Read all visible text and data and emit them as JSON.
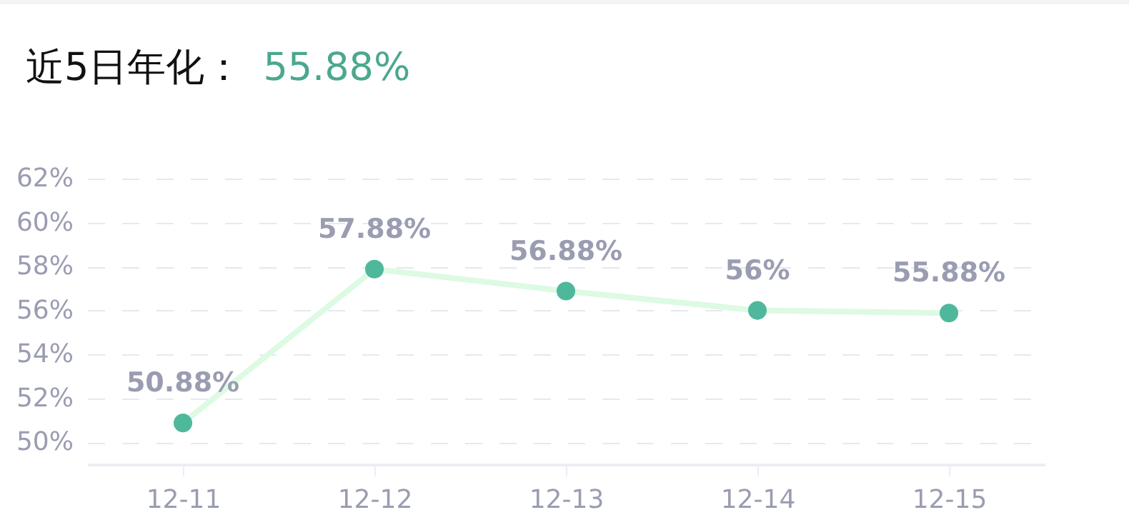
{
  "chart_data": {
    "type": "line",
    "title": "近5日年化：",
    "subtitle": "55.88%",
    "categories": [
      "12-11",
      "12-12",
      "12-13",
      "12-14",
      "12-15"
    ],
    "series": [
      {
        "color": "#4fb89c",
        "values": [
          50.88,
          57.88,
          56.88,
          56,
          55.88
        ],
        "value_labels": [
          "50.88%",
          "57.88%",
          "56.88%",
          "56%",
          "55.88%"
        ]
      }
    ],
    "ylim": [
      49,
      62
    ],
    "yticks": [
      {
        "value": 50,
        "label": "50%"
      },
      {
        "value": 52,
        "label": "52%"
      },
      {
        "value": 54,
        "label": "54%"
      },
      {
        "value": 56,
        "label": "56%"
      },
      {
        "value": 58,
        "label": "58%"
      },
      {
        "value": 60,
        "label": "60%"
      },
      {
        "value": 62,
        "label": "62%"
      }
    ],
    "grid": "y",
    "marker": "circle",
    "line_style": "solid"
  }
}
